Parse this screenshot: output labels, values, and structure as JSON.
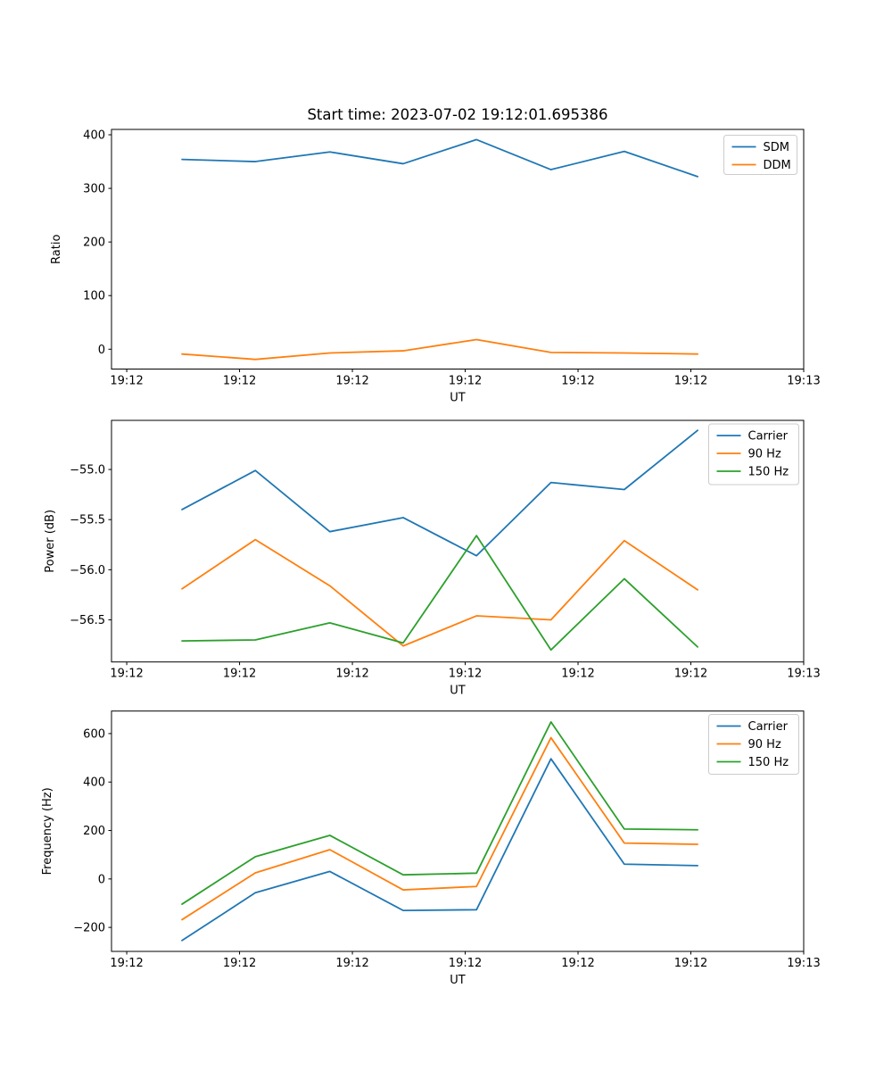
{
  "title": "Start time: 2023-07-02 19:12:01.695386",
  "colors": {
    "blue": "#1f77b4",
    "orange": "#ff7f0e",
    "green": "#2ca02c"
  },
  "chart_data": [
    {
      "type": "line",
      "title": "",
      "xlabel": "UT",
      "ylabel": "Ratio",
      "x_tick_labels": [
        "19:12",
        "19:12",
        "19:12",
        "19:12",
        "19:12",
        "19:12",
        "19:13"
      ],
      "x_tick_seconds": [
        0,
        10,
        20,
        30,
        40,
        50,
        60
      ],
      "xlim": [
        -1.35,
        60
      ],
      "ylim": [
        -37,
        410
      ],
      "y_ticks": [
        {
          "value": 400,
          "label": "400"
        },
        {
          "value": 300,
          "label": "300"
        },
        {
          "value": 200,
          "label": "200"
        },
        {
          "value": 100,
          "label": "100"
        },
        {
          "value": 0,
          "label": "0"
        }
      ],
      "x_seconds": [
        4.9,
        11.4,
        18.0,
        24.5,
        31.0,
        37.6,
        44.1,
        50.6
      ],
      "series": [
        {
          "name": "SDM",
          "color": "#1f77b4",
          "values": [
            354,
            350,
            368,
            346,
            391,
            335,
            369,
            322
          ]
        },
        {
          "name": "DDM",
          "color": "#ff7f0e",
          "values": [
            -9,
            -19,
            -7,
            -3,
            18,
            -6,
            -7,
            -9
          ]
        }
      ],
      "legend": {
        "position": "upper right",
        "entries": [
          "SDM",
          "DDM"
        ]
      },
      "grid": false
    },
    {
      "type": "line",
      "title": "",
      "xlabel": "UT",
      "ylabel": "Power (dB)",
      "x_tick_labels": [
        "19:12",
        "19:12",
        "19:12",
        "19:12",
        "19:12",
        "19:12",
        "19:13"
      ],
      "x_tick_seconds": [
        0,
        10,
        20,
        30,
        40,
        50,
        60
      ],
      "xlim": [
        -1.35,
        60
      ],
      "ylim": [
        -56.92,
        -54.51
      ],
      "y_ticks": [
        {
          "value": -55.0,
          "label": "−55.0"
        },
        {
          "value": -55.5,
          "label": "−55.5"
        },
        {
          "value": -56.0,
          "label": "−56.0"
        },
        {
          "value": -56.5,
          "label": "−56.5"
        }
      ],
      "x_seconds": [
        4.9,
        11.4,
        18.0,
        24.5,
        31.0,
        37.6,
        44.1,
        50.6
      ],
      "series": [
        {
          "name": "Carrier",
          "color": "#1f77b4",
          "values": [
            -55.4,
            -55.01,
            -55.62,
            -55.48,
            -55.86,
            -55.13,
            -55.2,
            -54.61
          ]
        },
        {
          "name": "90 Hz",
          "color": "#ff7f0e",
          "values": [
            -56.19,
            -55.7,
            -56.16,
            -56.76,
            -56.46,
            -56.5,
            -55.71,
            -56.2
          ]
        },
        {
          "name": "150 Hz",
          "color": "#2ca02c",
          "values": [
            -56.71,
            -56.7,
            -56.53,
            -56.73,
            -55.66,
            -56.8,
            -56.09,
            -56.77
          ]
        }
      ],
      "legend": {
        "position": "upper right",
        "entries": [
          "Carrier",
          "90 Hz",
          "150 Hz"
        ]
      },
      "grid": false
    },
    {
      "type": "line",
      "title": "",
      "xlabel": "UT",
      "ylabel": "Frequency (Hz)",
      "x_tick_labels": [
        "19:12",
        "19:12",
        "19:12",
        "19:12",
        "19:12",
        "19:12",
        "19:13"
      ],
      "x_tick_seconds": [
        0,
        10,
        20,
        30,
        40,
        50,
        60
      ],
      "xlim": [
        -1.35,
        60
      ],
      "ylim": [
        -299,
        693
      ],
      "y_ticks": [
        {
          "value": 600,
          "label": "600"
        },
        {
          "value": 400,
          "label": "400"
        },
        {
          "value": 200,
          "label": "200"
        },
        {
          "value": 0,
          "label": "0"
        },
        {
          "value": -200,
          "label": "−200"
        }
      ],
      "x_seconds": [
        4.9,
        11.4,
        18.0,
        24.5,
        31.0,
        37.6,
        44.1,
        50.6
      ],
      "series": [
        {
          "name": "Carrier",
          "color": "#1f77b4",
          "values": [
            -254,
            -57,
            31,
            -130,
            -127,
            496,
            61,
            55
          ]
        },
        {
          "name": "90 Hz",
          "color": "#ff7f0e",
          "values": [
            -168,
            25,
            121,
            -45,
            -31,
            583,
            148,
            143
          ]
        },
        {
          "name": "150 Hz",
          "color": "#2ca02c",
          "values": [
            -104,
            92,
            180,
            17,
            24,
            648,
            206,
            203
          ]
        }
      ],
      "legend": {
        "position": "upper right",
        "entries": [
          "Carrier",
          "90 Hz",
          "150 Hz"
        ]
      },
      "grid": false
    }
  ]
}
